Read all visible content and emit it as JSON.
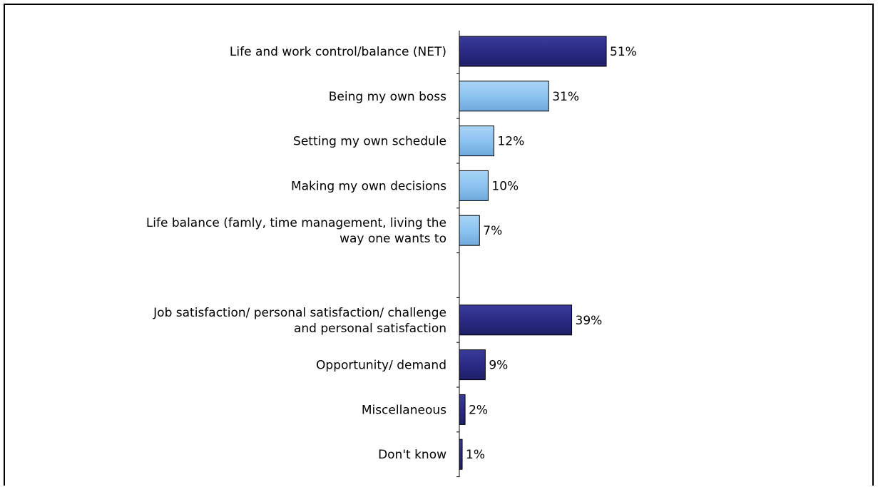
{
  "chart_data": {
    "type": "bar",
    "orientation": "horizontal",
    "categories": [
      "Life and work control/balance (NET)",
      "Being my own boss",
      "Setting my own schedule",
      "Making my own decisions",
      "Life balance (famly, time management, living the way one wants to",
      "",
      "Job satisfaction/ personal satisfaction/ challenge and personal satisfaction",
      "Opportunity/ demand",
      "Miscellaneous",
      "Don't know"
    ],
    "category_lines": [
      [
        "Life and work control/balance (NET)"
      ],
      [
        "Being my own boss"
      ],
      [
        "Setting my own schedule"
      ],
      [
        "Making my own decisions"
      ],
      [
        "Life balance (famly, time management, living the",
        "way one wants to"
      ],
      [],
      [
        "Job satisfaction/ personal satisfaction/ challenge",
        "and personal satisfaction"
      ],
      [
        "Opportunity/ demand"
      ],
      [
        "Miscellaneous"
      ],
      [
        "Don't know"
      ]
    ],
    "values": [
      51,
      31,
      12,
      10,
      7,
      null,
      39,
      9,
      2,
      1
    ],
    "value_labels": [
      "51%",
      "31%",
      "12%",
      "10%",
      "7%",
      "",
      "39%",
      "9%",
      "2%",
      "1%"
    ],
    "bar_styles": [
      "net",
      "sub",
      "sub",
      "sub",
      "sub",
      "",
      "net",
      "net",
      "net",
      "net"
    ],
    "colors": {
      "net": "#2b2b86",
      "sub": "#8cc3f0",
      "bar_border": "#000000"
    },
    "xlim": [
      0,
      100
    ],
    "grid": false,
    "legend": "none",
    "title": "",
    "xlabel": "",
    "ylabel": ""
  }
}
